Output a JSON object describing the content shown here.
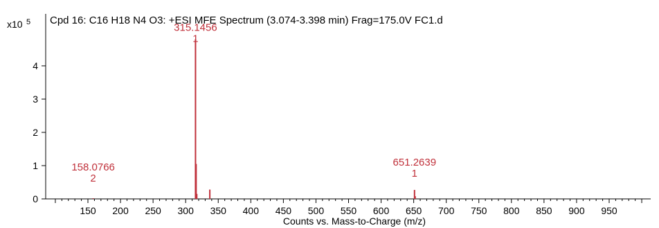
{
  "chart_data": {
    "type": "bar",
    "title": "Cpd 16: C16 H18 N4 O3: +ESI MFE Spectrum (3.074-3.398 min) Frag=175.0V FC1.d",
    "xlabel": "Counts vs. Mass-to-Charge (m/z)",
    "y_multiplier": {
      "base": "x10",
      "exponent": "5"
    },
    "xlim": [
      100,
      1000
    ],
    "ylim": [
      0,
      5.1
    ],
    "x_ticks": [
      150,
      200,
      250,
      300,
      350,
      400,
      450,
      500,
      550,
      600,
      650,
      700,
      750,
      800,
      850,
      900,
      950
    ],
    "y_ticks": [
      0,
      1,
      2,
      3,
      4
    ],
    "peaks": [
      {
        "mz": 158.0766,
        "intensity": 0.02
      },
      {
        "mz": 315.1456,
        "intensity": 4.8
      },
      {
        "mz": 316.1,
        "intensity": 1.05
      },
      {
        "mz": 317.1,
        "intensity": 0.15
      },
      {
        "mz": 337.1,
        "intensity": 0.28
      },
      {
        "mz": 651.2639,
        "intensity": 0.27
      },
      {
        "mz": 652.3,
        "intensity": 0.08
      }
    ],
    "annotations": [
      {
        "mz": 158.0766,
        "label": "158.0766",
        "charge": "2",
        "text_y": 0.85
      },
      {
        "mz": 315.1456,
        "label": "315.1456",
        "charge": "1",
        "text_y": 5.05
      },
      {
        "mz": 651.2639,
        "label": "651.2639",
        "charge": "1",
        "text_y": 1.0
      }
    ],
    "peak_color": "#c0303a",
    "axis_color": "#000000",
    "grid": false
  }
}
